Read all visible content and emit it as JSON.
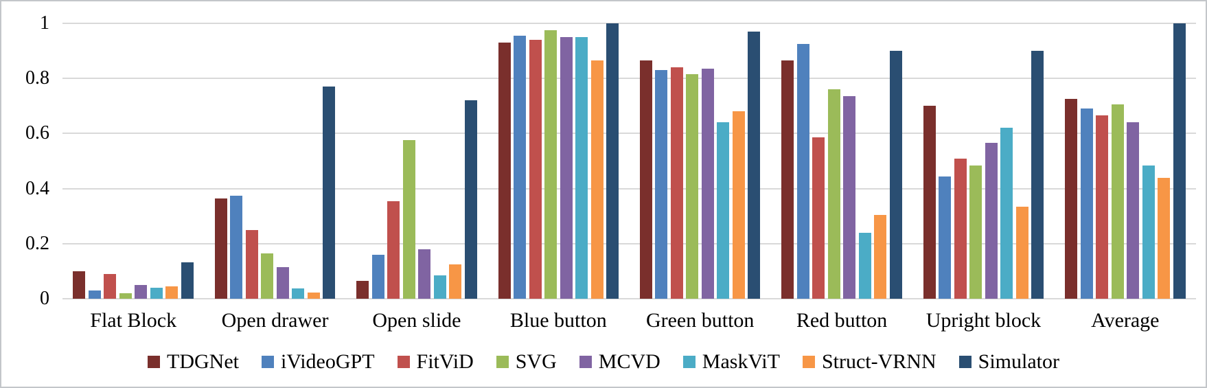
{
  "chart_data": {
    "type": "bar",
    "title": "",
    "xlabel": "",
    "ylabel": "",
    "ylim": [
      0,
      1
    ],
    "yticks": [
      0,
      0.2,
      0.4,
      0.6,
      0.8,
      1
    ],
    "ytick_labels": [
      "0",
      "0.2",
      "0.4",
      "0.6",
      "0.8",
      "1"
    ],
    "grid": true,
    "gridline_color": "#d9d9d9",
    "legend_position": "bottom",
    "categories": [
      "Flat Block",
      "Open drawer",
      "Open slide",
      "Blue button",
      "Green button",
      "Red button",
      "Upright block",
      "Average"
    ],
    "series": [
      {
        "name": "TDGNet",
        "color": "#7a2f2c",
        "values": [
          0.1,
          0.365,
          0.065,
          0.93,
          0.865,
          0.865,
          0.7,
          0.725
        ]
      },
      {
        "name": "iVideoGPT",
        "color": "#4f81bd",
        "values": [
          0.03,
          0.375,
          0.16,
          0.955,
          0.83,
          0.925,
          0.445,
          0.69
        ]
      },
      {
        "name": "FitViD",
        "color": "#c0504d",
        "values": [
          0.09,
          0.25,
          0.355,
          0.94,
          0.84,
          0.585,
          0.51,
          0.665
        ]
      },
      {
        "name": "SVG",
        "color": "#9bbb59",
        "values": [
          0.02,
          0.165,
          0.575,
          0.975,
          0.815,
          0.76,
          0.485,
          0.705
        ]
      },
      {
        "name": "MCVD",
        "color": "#8064a2",
        "values": [
          0.05,
          0.115,
          0.18,
          0.95,
          0.835,
          0.735,
          0.565,
          0.64
        ]
      },
      {
        "name": "MaskViT",
        "color": "#4bacc6",
        "values": [
          0.04,
          0.038,
          0.085,
          0.95,
          0.64,
          0.24,
          0.62,
          0.485
        ]
      },
      {
        "name": "Struct-VRNN",
        "color": "#f79646",
        "values": [
          0.045,
          0.022,
          0.125,
          0.865,
          0.68,
          0.305,
          0.335,
          0.44
        ]
      },
      {
        "name": "Simulator",
        "color": "#2a4e72",
        "values": [
          0.133,
          0.77,
          0.72,
          1.0,
          0.97,
          0.9,
          0.9,
          1.0
        ]
      }
    ]
  }
}
